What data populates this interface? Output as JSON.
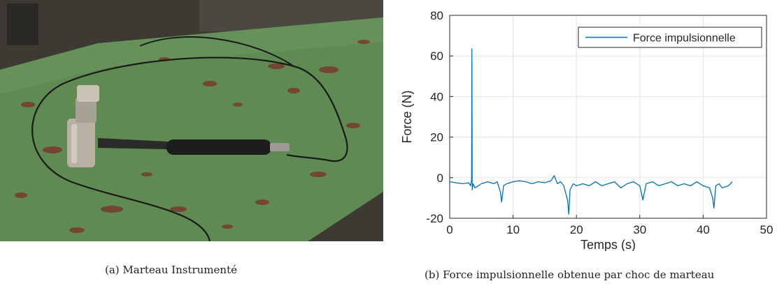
{
  "captions": {
    "a": "(a) Marteau Instrumenté",
    "b": "(b) Force impulsionnelle obtenue par choc de marteau"
  },
  "photo": {
    "icon": "instrumented-hammer-photo",
    "colors": {
      "bench": "#5f8a52",
      "background": "#3c3a33",
      "rust": "#7a3a2e",
      "handle": "#1d1d1d",
      "head": "#b7b0a3"
    }
  },
  "chart_data": {
    "type": "line",
    "xlabel": "Temps (s)",
    "ylabel": "Force (N)",
    "xlim": [
      0,
      50
    ],
    "ylim": [
      -20,
      80
    ],
    "xticks": [
      0,
      10,
      20,
      30,
      40,
      50
    ],
    "yticks": [
      -20,
      0,
      20,
      40,
      60,
      80
    ],
    "xtick_labels": [
      "0",
      "10",
      "20",
      "30",
      "40",
      "50"
    ],
    "ytick_labels": [
      "-20",
      "0",
      "20",
      "40",
      "60",
      "80"
    ],
    "grid": true,
    "legend_position": "top-right",
    "series": [
      {
        "name": "Force impulsionnelle",
        "color": "#0072bd",
        "x": [
          0,
          1,
          2,
          3,
          3.3,
          3.45,
          3.5,
          3.55,
          3.7,
          4,
          5,
          6,
          7,
          7.5,
          8,
          8.2,
          8.5,
          9,
          10,
          11,
          12,
          13,
          14,
          15,
          16,
          16.5,
          17,
          17.5,
          18,
          18.6,
          18.8,
          19,
          19.5,
          20,
          21,
          22,
          23,
          24,
          25,
          26,
          27,
          28,
          29,
          30,
          30.5,
          31,
          32,
          33,
          34,
          35,
          36,
          37,
          38,
          39,
          40,
          41,
          41.5,
          41.7,
          42,
          42.5,
          43,
          44,
          44.6
        ],
        "y": [
          -2,
          -2.5,
          -3,
          -2.5,
          -4,
          -1,
          63.5,
          -6,
          -3,
          -5,
          -3,
          -2,
          -3,
          -2,
          -7,
          -12,
          -4,
          -3,
          -2,
          -1.5,
          -2,
          -3,
          -2,
          -2.5,
          -1.5,
          1,
          -3,
          -2,
          -4,
          -11,
          -18,
          -6,
          -3,
          -4,
          -3,
          -4,
          -2,
          -4,
          -3,
          -2,
          -5,
          -3,
          -2,
          -4,
          -11,
          -3,
          -2,
          -4,
          -3,
          -2,
          -4,
          -3,
          -4,
          -2,
          -4,
          -5,
          -10,
          -15,
          -4,
          -3,
          -5,
          -4,
          -2
        ]
      }
    ]
  }
}
